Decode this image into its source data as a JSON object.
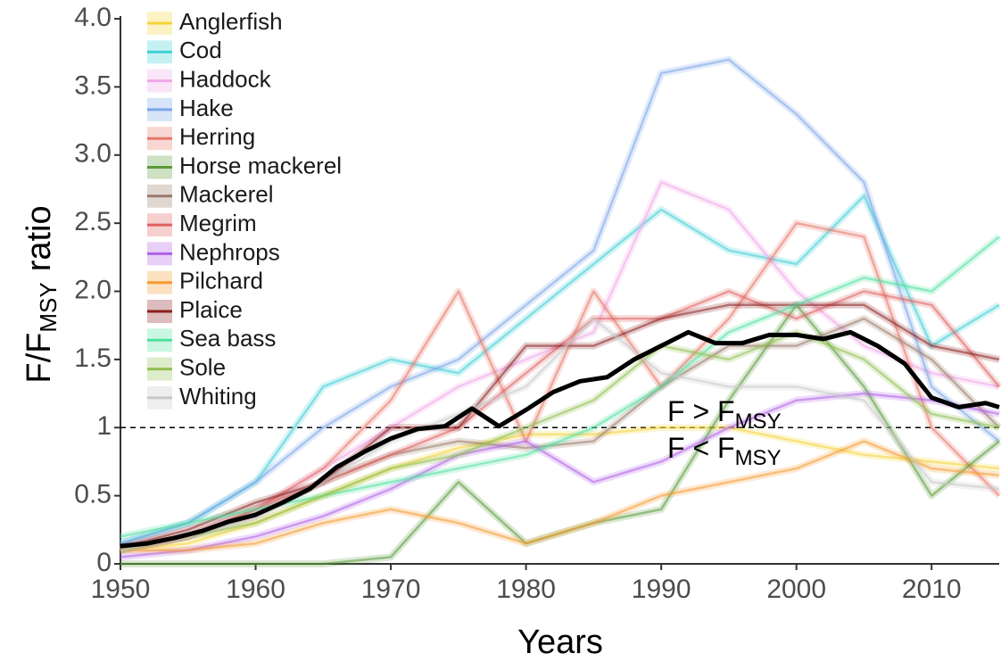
{
  "chart_data": {
    "type": "line",
    "x_label": "Years",
    "y_label": {
      "main": "F/F",
      "sub": "MSY",
      "rest": "ratio"
    },
    "x": [
      1950,
      1955,
      1960,
      1965,
      1970,
      1975,
      1980,
      1985,
      1990,
      1995,
      2000,
      2005,
      2010,
      2015
    ],
    "series": [
      {
        "name": "Anglerfish",
        "color": "#f5d43a",
        "values": [
          0.1,
          0.15,
          0.3,
          0.5,
          0.7,
          0.85,
          0.95,
          0.95,
          1.0,
          1.0,
          0.9,
          0.8,
          0.75,
          0.7
        ]
      },
      {
        "name": "Cod",
        "color": "#3ecfd6",
        "values": [
          0.15,
          0.3,
          0.6,
          1.3,
          1.5,
          1.4,
          1.8,
          2.2,
          2.6,
          2.3,
          2.2,
          2.7,
          1.6,
          1.9
        ]
      },
      {
        "name": "Haddock",
        "color": "#f0a8e8",
        "values": [
          0.1,
          0.2,
          0.4,
          0.7,
          1.0,
          1.3,
          1.5,
          1.7,
          2.8,
          2.6,
          2.0,
          1.6,
          1.4,
          1.3
        ]
      },
      {
        "name": "Hake",
        "color": "#7aa6e8",
        "values": [
          0.15,
          0.3,
          0.6,
          1.0,
          1.3,
          1.5,
          1.9,
          2.3,
          3.6,
          3.7,
          3.3,
          2.8,
          1.3,
          0.9
        ]
      },
      {
        "name": "Herring",
        "color": "#e8786a",
        "values": [
          0.1,
          0.2,
          0.4,
          0.7,
          1.2,
          2.0,
          0.9,
          2.0,
          1.3,
          1.8,
          2.5,
          2.4,
          1.0,
          0.5
        ]
      },
      {
        "name": "Horse mackerel",
        "color": "#5a9a3a",
        "values": [
          0,
          0,
          0,
          0,
          0.05,
          0.6,
          0.15,
          0.3,
          0.4,
          1.2,
          1.9,
          1.3,
          0.5,
          0.9
        ]
      },
      {
        "name": "Mackerel",
        "color": "#9a7a6a",
        "values": [
          0.1,
          0.2,
          0.35,
          0.6,
          0.8,
          0.9,
          0.85,
          0.9,
          1.3,
          1.6,
          1.6,
          1.8,
          1.5,
          1.0
        ]
      },
      {
        "name": "Megrim",
        "color": "#e06060",
        "values": [
          0.12,
          0.2,
          0.4,
          0.6,
          0.8,
          1.0,
          1.4,
          1.8,
          1.8,
          2.0,
          1.8,
          2.0,
          1.9,
          1.3
        ]
      },
      {
        "name": "Nephrops",
        "color": "#b060e8",
        "values": [
          0.05,
          0.1,
          0.2,
          0.35,
          0.55,
          0.8,
          0.9,
          0.6,
          0.75,
          1.0,
          1.2,
          1.25,
          1.2,
          1.1
        ]
      },
      {
        "name": "Pilchard",
        "color": "#f59a30",
        "values": [
          0.1,
          0.1,
          0.15,
          0.3,
          0.4,
          0.3,
          0.15,
          0.3,
          0.5,
          0.6,
          0.7,
          0.9,
          0.7,
          0.65
        ]
      },
      {
        "name": "Plaice",
        "color": "#8b2020",
        "values": [
          0.12,
          0.25,
          0.45,
          0.6,
          1.0,
          1.0,
          1.6,
          1.6,
          1.8,
          1.9,
          1.9,
          1.9,
          1.6,
          1.5
        ]
      },
      {
        "name": "Sea bass",
        "color": "#50e0a0",
        "values": [
          0.2,
          0.3,
          0.4,
          0.5,
          0.6,
          0.7,
          0.8,
          1.0,
          1.3,
          1.7,
          1.9,
          2.1,
          2.0,
          2.4
        ]
      },
      {
        "name": "Sole",
        "color": "#90c050",
        "values": [
          0.1,
          0.2,
          0.3,
          0.5,
          0.7,
          0.8,
          1.0,
          1.2,
          1.6,
          1.5,
          1.7,
          1.5,
          1.1,
          1.0
        ]
      },
      {
        "name": "Whiting",
        "color": "#c8c8c8",
        "values": [
          0.1,
          0.2,
          0.35,
          0.6,
          0.9,
          1.1,
          1.3,
          1.8,
          1.4,
          1.3,
          1.3,
          1.2,
          0.6,
          0.55
        ]
      }
    ],
    "mean_line": {
      "color": "#000000",
      "x": [
        1950,
        1952,
        1954,
        1956,
        1958,
        1960,
        1962,
        1964,
        1966,
        1968,
        1970,
        1972,
        1974,
        1976,
        1978,
        1980,
        1982,
        1984,
        1986,
        1988,
        1990,
        1992,
        1994,
        1996,
        1998,
        2000,
        2002,
        2004,
        2006,
        2008,
        2010,
        2012,
        2014,
        2015
      ],
      "values": [
        0.13,
        0.15,
        0.19,
        0.24,
        0.31,
        0.36,
        0.45,
        0.55,
        0.71,
        0.82,
        0.92,
        0.99,
        1.01,
        1.14,
        1.01,
        1.13,
        1.26,
        1.34,
        1.37,
        1.5,
        1.6,
        1.7,
        1.62,
        1.62,
        1.68,
        1.68,
        1.65,
        1.7,
        1.6,
        1.47,
        1.22,
        1.15,
        1.18,
        1.15
      ]
    },
    "reference_line": 1,
    "annotations": [
      {
        "text": "F > F",
        "sub": "MSY"
      },
      {
        "text": "F < F",
        "sub": "MSY"
      }
    ],
    "xlim": [
      1950,
      2015
    ],
    "xticks": [
      1950,
      1960,
      1970,
      1980,
      1990,
      2000,
      2010
    ],
    "ylim": [
      0,
      4.02
    ],
    "yticks": [
      0,
      0.5,
      1,
      1.5,
      {
        "value": 2,
        "label": "2.0"
      },
      2.5,
      {
        "value": 3,
        "label": "3.0"
      },
      3.5,
      {
        "value": 4,
        "label": "4.0"
      }
    ],
    "legend": "top-left",
    "grid": false
  }
}
